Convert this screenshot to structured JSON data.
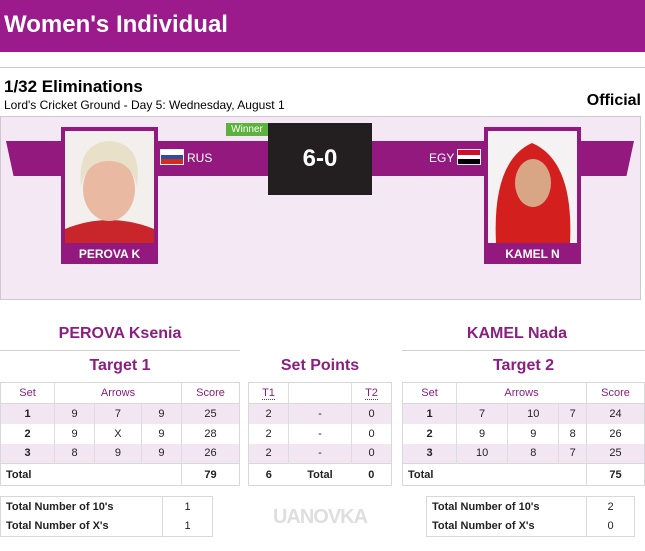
{
  "header": {
    "title": "Women's Individual"
  },
  "match": {
    "round": "1/32 Eliminations",
    "venue": "Lord's Cricket Ground - Day 5: Wednesday, August 1",
    "status": "Official",
    "score": "6-0",
    "winner_label": "Winner"
  },
  "athlete1": {
    "short": "PEROVA K",
    "full": "PEROVA Ksenia",
    "country": "RUS",
    "target": "Target 1",
    "headers": [
      "Set",
      "Arrows",
      "Score"
    ],
    "sets": [
      {
        "set": "1",
        "arrows": [
          "9",
          "7",
          "9"
        ],
        "score": "25"
      },
      {
        "set": "2",
        "arrows": [
          "9",
          "X",
          "9"
        ],
        "score": "28"
      },
      {
        "set": "3",
        "arrows": [
          "8",
          "9",
          "9"
        ],
        "score": "26"
      }
    ],
    "total_label": "Total",
    "total": "79",
    "tens_label": "Total Number of 10's",
    "tens": "1",
    "xs_label": "Total Number of X's",
    "xs": "1"
  },
  "athlete2": {
    "short": "KAMEL N",
    "full": "KAMEL Nada",
    "country": "EGY",
    "target": "Target 2",
    "headers": [
      "Set",
      "Arrows",
      "Score"
    ],
    "sets": [
      {
        "set": "1",
        "arrows": [
          "7",
          "10",
          "7"
        ],
        "score": "24"
      },
      {
        "set": "2",
        "arrows": [
          "9",
          "9",
          "8"
        ],
        "score": "26"
      },
      {
        "set": "3",
        "arrows": [
          "10",
          "8",
          "7"
        ],
        "score": "25"
      }
    ],
    "total_label": "Total",
    "total": "75",
    "tens_label": "Total Number of 10's",
    "tens": "2",
    "xs_label": "Total Number of X's",
    "xs": "0"
  },
  "set_points": {
    "title": "Set Points",
    "h1": "T1",
    "h2": "T2",
    "rows": [
      [
        "2",
        "-",
        "0"
      ],
      [
        "2",
        "-",
        "0"
      ],
      [
        "2",
        "-",
        "0"
      ]
    ],
    "total": [
      "6",
      "Total",
      "0"
    ]
  },
  "watermark": "UANOVKA",
  "colors": {
    "brand": "#9b1b8c",
    "winner": "#5cb33b",
    "score_bg": "#231f20"
  }
}
